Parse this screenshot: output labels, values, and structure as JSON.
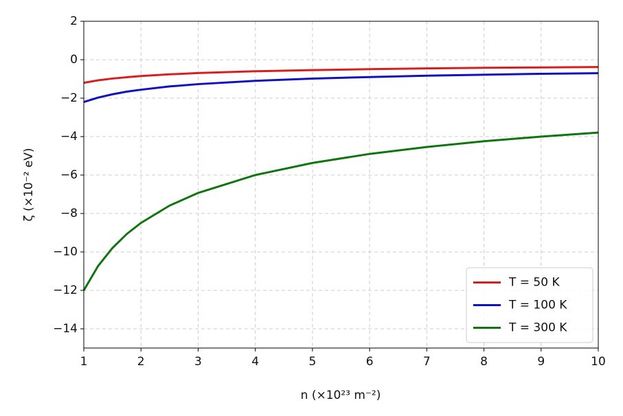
{
  "chart_data": {
    "type": "line",
    "xlabel": "n (×10²³ m⁻²)",
    "ylabel": "ζ (×10⁻² eV)",
    "x": [
      1,
      1.25,
      1.5,
      1.75,
      2,
      2.5,
      3,
      4,
      5,
      6,
      7,
      8,
      9,
      10
    ],
    "series": [
      {
        "name": "T = 50 K",
        "color": "#d62020",
        "values": [
          -1.2,
          -1.07,
          -0.98,
          -0.91,
          -0.85,
          -0.76,
          -0.69,
          -0.6,
          -0.54,
          -0.49,
          -0.45,
          -0.42,
          -0.4,
          -0.38
        ]
      },
      {
        "name": "T = 100 K",
        "color": "#1010c0",
        "values": [
          -2.2,
          -1.97,
          -1.8,
          -1.66,
          -1.56,
          -1.39,
          -1.27,
          -1.1,
          -0.98,
          -0.9,
          -0.83,
          -0.78,
          -0.73,
          -0.7
        ]
      },
      {
        "name": "T = 300 K",
        "color": "#107510",
        "values": [
          -12,
          -10.73,
          -9.8,
          -9.07,
          -8.49,
          -7.59,
          -6.93,
          -6.0,
          -5.37,
          -4.9,
          -4.54,
          -4.24,
          -4.0,
          -3.79
        ]
      }
    ],
    "xlim": [
      1,
      10
    ],
    "xticks": [
      1,
      2,
      3,
      4,
      5,
      6,
      7,
      8,
      9,
      10
    ],
    "ylim": [
      -15,
      2
    ],
    "yticks": [
      2,
      0,
      {
        "value": -2,
        "label": "−2"
      },
      {
        "value": -4,
        "label": "−4"
      },
      {
        "value": -6,
        "label": "−6"
      },
      {
        "value": -8,
        "label": "−8"
      },
      {
        "value": -10,
        "label": "−10"
      },
      {
        "value": -12,
        "label": "−12"
      },
      {
        "value": -14,
        "label": "−14"
      }
    ],
    "grid": true,
    "legend": "lower right"
  }
}
